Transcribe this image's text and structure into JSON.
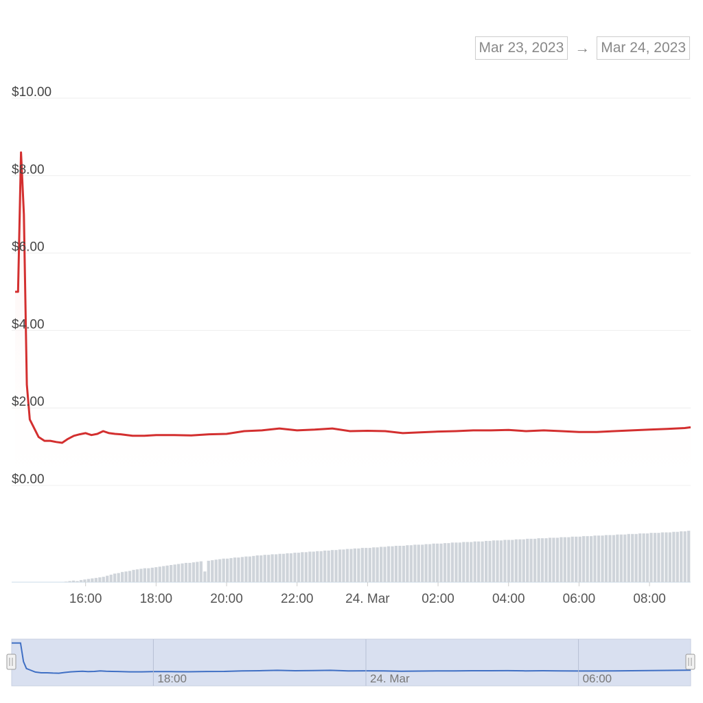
{
  "range": {
    "from": "Mar 23, 2023",
    "arrow": "→",
    "to": "Mar 24, 2023"
  },
  "colors": {
    "price_line": "#d32f2f",
    "price_fill": "#fdecea",
    "volume_bar": "#cfd4da",
    "grid": "#eeeeee",
    "navigator_bg": "#d9e0f0",
    "navigator_line": "#3f6fc4"
  },
  "chart_data": {
    "type": "line",
    "y_axis": {
      "min": 0,
      "max": 10,
      "tick_labels": [
        "$0.00",
        "$2.00",
        "$4.00",
        "$6.00",
        "$8.00",
        "$10.00"
      ]
    },
    "x_axis": {
      "tick_labels": [
        "16:00",
        "18:00",
        "20:00",
        "22:00",
        "24. Mar",
        "02:00",
        "04:00",
        "06:00",
        "08:00"
      ]
    },
    "series": [
      {
        "kind": "price",
        "x": [
          "14:00",
          "14:05",
          "14:10",
          "14:15",
          "14:20",
          "14:25",
          "14:30",
          "14:40",
          "14:50",
          "15:00",
          "15:10",
          "15:20",
          "15:30",
          "15:40",
          "15:50",
          "16:00",
          "16:10",
          "16:20",
          "16:30",
          "16:40",
          "16:50",
          "17:00",
          "17:20",
          "17:40",
          "18:00",
          "18:30",
          "19:00",
          "19:30",
          "20:00",
          "20:30",
          "21:00",
          "21:30",
          "22:00",
          "22:30",
          "23:00",
          "23:30",
          "24. Mar 00:00",
          "00:30",
          "01:00",
          "01:30",
          "02:00",
          "02:30",
          "03:00",
          "03:30",
          "04:00",
          "04:30",
          "05:00",
          "05:30",
          "06:00",
          "06:30",
          "07:00",
          "07:30",
          "08:00",
          "08:30",
          "09:00",
          "09:10"
        ],
        "y": [
          5.0,
          5.0,
          8.6,
          7.0,
          2.6,
          1.7,
          1.55,
          1.25,
          1.15,
          1.15,
          1.12,
          1.1,
          1.2,
          1.28,
          1.32,
          1.35,
          1.3,
          1.33,
          1.4,
          1.35,
          1.33,
          1.32,
          1.28,
          1.28,
          1.3,
          1.3,
          1.29,
          1.32,
          1.33,
          1.4,
          1.42,
          1.47,
          1.42,
          1.44,
          1.47,
          1.4,
          1.41,
          1.4,
          1.35,
          1.37,
          1.39,
          1.4,
          1.42,
          1.42,
          1.43,
          1.4,
          1.42,
          1.4,
          1.38,
          1.38,
          1.4,
          1.42,
          1.44,
          1.46,
          1.48,
          1.5
        ]
      }
    ],
    "volume": {
      "relative_max": 1.0,
      "values": [
        0.0,
        0.0,
        0.0,
        0.0,
        0.0,
        0.0,
        0.0,
        0.0,
        0.0,
        0.0,
        0.0,
        0.0,
        0.0,
        0.0,
        0.01,
        0.02,
        0.03,
        0.02,
        0.04,
        0.05,
        0.06,
        0.07,
        0.08,
        0.09,
        0.1,
        0.12,
        0.14,
        0.16,
        0.17,
        0.19,
        0.2,
        0.21,
        0.23,
        0.24,
        0.25,
        0.26,
        0.26,
        0.27,
        0.28,
        0.29,
        0.3,
        0.31,
        0.32,
        0.33,
        0.34,
        0.35,
        0.36,
        0.36,
        0.37,
        0.38,
        0.39,
        0.2,
        0.4,
        0.41,
        0.42,
        0.43,
        0.44,
        0.44,
        0.45,
        0.46,
        0.46,
        0.47,
        0.48,
        0.48,
        0.49,
        0.5,
        0.5,
        0.51,
        0.51,
        0.52,
        0.52,
        0.53,
        0.53,
        0.54,
        0.54,
        0.55,
        0.55,
        0.56,
        0.56,
        0.57,
        0.57,
        0.58,
        0.58,
        0.59,
        0.59,
        0.6,
        0.6,
        0.61,
        0.61,
        0.62,
        0.62,
        0.63,
        0.63,
        0.64,
        0.64,
        0.64,
        0.65,
        0.65,
        0.66,
        0.66,
        0.67,
        0.67,
        0.68,
        0.68,
        0.68,
        0.69,
        0.69,
        0.7,
        0.7,
        0.7,
        0.71,
        0.71,
        0.72,
        0.72,
        0.72,
        0.73,
        0.73,
        0.74,
        0.74,
        0.74,
        0.75,
        0.75,
        0.75,
        0.76,
        0.76,
        0.76,
        0.77,
        0.77,
        0.78,
        0.78,
        0.78,
        0.79,
        0.79,
        0.79,
        0.8,
        0.8,
        0.8,
        0.81,
        0.81,
        0.81,
        0.82,
        0.82,
        0.82,
        0.83,
        0.83,
        0.83,
        0.84,
        0.84,
        0.84,
        0.85,
        0.85,
        0.85,
        0.86,
        0.86,
        0.86,
        0.87,
        0.87,
        0.87,
        0.88,
        0.88,
        0.88,
        0.89,
        0.89,
        0.89,
        0.9,
        0.9,
        0.9,
        0.91,
        0.91,
        0.91,
        0.92,
        0.92,
        0.92,
        0.93,
        0.93,
        0.93,
        0.94,
        0.94,
        0.95,
        0.95,
        0.96
      ]
    },
    "navigator": {
      "tick_labels": [
        "18:00",
        "24. Mar",
        "06:00"
      ]
    },
    "grid": true,
    "legend": "none"
  }
}
